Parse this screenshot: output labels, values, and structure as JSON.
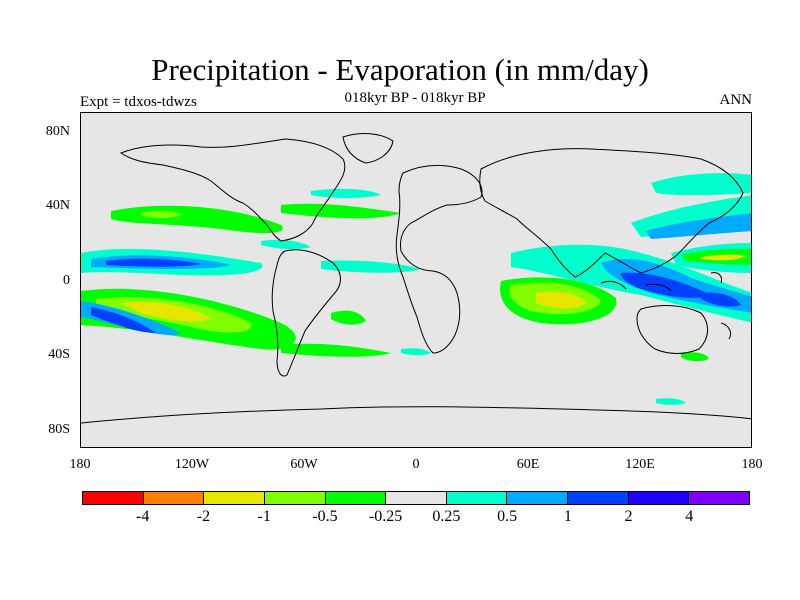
{
  "title": "Precipitation - Evaporation (in mm/day)",
  "subtitle": "018kyr BP - 018kyr BP",
  "experiment_label": "Expt = tdxos-tdwzs",
  "season_label": "ANN",
  "lat_ticks": [
    "80N",
    "40N",
    "0",
    "40S",
    "80S"
  ],
  "lon_ticks": [
    "180",
    "120W",
    "60W",
    "0",
    "60E",
    "120E",
    "180"
  ],
  "colorbar": {
    "colors": [
      "#ff0000",
      "#ff8000",
      "#e6e600",
      "#80ff00",
      "#00ff00",
      "#e6e6e6",
      "#00ffcc",
      "#00aaff",
      "#0040ff",
      "#2000ff",
      "#8000ff"
    ],
    "labels": [
      "-4",
      "-2",
      "-1",
      "-0.5",
      "-0.25",
      "0.25",
      "0.5",
      "1",
      "2",
      "4"
    ]
  },
  "colors": {
    "background": "#e6e6e6",
    "yellow": "#e6e600",
    "light_green": "#80ff00",
    "green": "#00ff00",
    "cyan": "#00ffcc",
    "light_blue": "#00aaff",
    "blue": "#0040ff",
    "dark_blue": "#2000ff"
  }
}
